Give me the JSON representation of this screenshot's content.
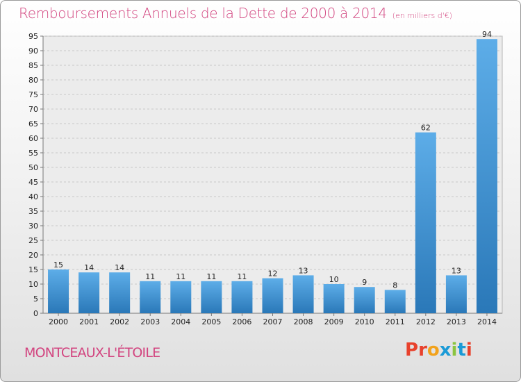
{
  "header": {
    "title": "Remboursements Annuels de la Dette de 2000 à 2014",
    "unit": "(en milliers d'€)"
  },
  "footer": {
    "commune": "MONTCEAUX-L'ÉTOILE",
    "logo": "Proxiti",
    "logo_colors": [
      "#e8412c",
      "#e8412c",
      "#f2a21b",
      "#1a9ad6",
      "#8ac43f",
      "#1a9ad6",
      "#e8412c"
    ]
  },
  "colors": {
    "bar_light": "#5dade8",
    "bar_dark": "#2a78b8",
    "title": "#d2447f"
  },
  "chart_data": {
    "type": "bar",
    "title": "Remboursements Annuels de la Dette de 2000 à 2014",
    "unit": "(en milliers d'€)",
    "categories": [
      "2000",
      "2001",
      "2002",
      "2003",
      "2004",
      "2005",
      "2006",
      "2007",
      "2008",
      "2009",
      "2010",
      "2011",
      "2012",
      "2013",
      "2014"
    ],
    "values": [
      15,
      14,
      14,
      11,
      11,
      11,
      11,
      12,
      13,
      10,
      9,
      8,
      62,
      13,
      94
    ],
    "ylim": [
      0,
      95
    ],
    "yticks": [
      0,
      5,
      10,
      15,
      20,
      25,
      30,
      35,
      40,
      45,
      50,
      55,
      60,
      65,
      70,
      75,
      80,
      85,
      90,
      95
    ],
    "grid": true,
    "legend": "none"
  }
}
